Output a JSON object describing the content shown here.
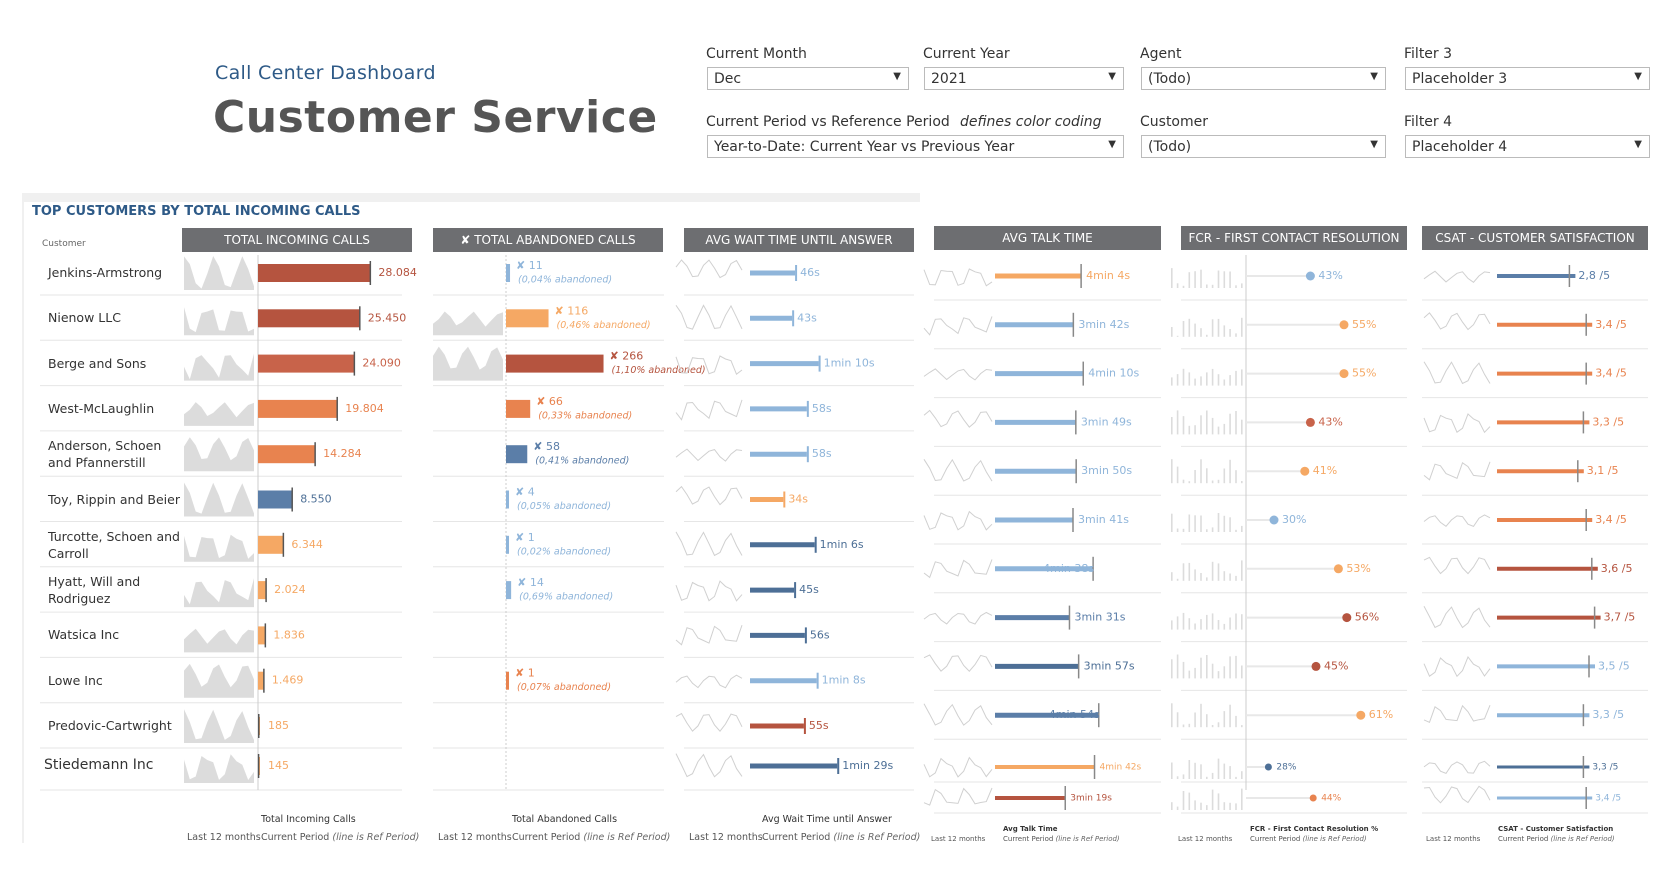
{
  "header": {
    "subtitle": "Call Center Dashboard",
    "title": "Customer Service"
  },
  "filters": {
    "current_month": {
      "label": "Current Month",
      "value": "Dec"
    },
    "current_year": {
      "label": "Current Year",
      "value": "2021"
    },
    "agent": {
      "label": "Agent",
      "value": "(Todo)"
    },
    "filter3": {
      "label": "Filter 3",
      "value": "Placeholder 3"
    },
    "period": {
      "label": "Current Period vs Reference Period",
      "note": "defines color coding",
      "value": "Year-to-Date: Current Year vs Previous Year"
    },
    "customer": {
      "label": "Customer",
      "value": "(Todo)"
    },
    "filter4": {
      "label": "Filter 4",
      "value": "Placeholder 4"
    }
  },
  "section_title": "TOP CUSTOMERS BY TOTAL INCOMING CALLS",
  "customer_header": "Customer",
  "columns": {
    "incoming": "TOTAL INCOMING CALLS",
    "abandoned": "✘ TOTAL ABANDONED CALLS",
    "wait": "AVG WAIT TIME UNTIL ANSWER",
    "talk": "AVG TALK TIME",
    "fcr": "FCR - FIRST CONTACT RESOLUTION %",
    "csat": "CSAT - CUSTOMER SATISFACTION"
  },
  "footers": {
    "last12": "Last 12 months",
    "current_period": "Current Period",
    "ref_note": "(line is Ref Period)",
    "incoming": "Total Incoming Calls",
    "abandoned": "Total Abandoned Calls",
    "wait": "Avg Wait Time until Answer",
    "talk": "Avg Talk Time",
    "fcr": "FCR - First Contact Resolution %",
    "csat": "CSAT - Customer Satisfaction"
  },
  "colors": {
    "dark_red": "#b5543f",
    "red": "#c8634a",
    "orange": "#e8834f",
    "light_orange": "#f5a864",
    "blue": "#5b7ea8",
    "dark_blue": "#4d6f96",
    "light_blue": "#8fb5da",
    "grey_bar": "#6d6e71",
    "spark": "#d4d4d4"
  },
  "chart_data": {
    "type": "table",
    "customers": [
      "Jenkins-Armstrong",
      "Nienow LLC",
      "Berge and Sons",
      "West-McLaughlin",
      "Anderson, Schoen and Pfannerstill",
      "Toy, Rippin and Beier",
      "Turcotte, Schoen and Carroll",
      "Hyatt, Will and Rodriguez",
      "Watsica Inc",
      "Lowe Inc",
      "Predovic-Cartwright",
      "Stiedemann Inc"
    ],
    "incoming": {
      "values": [
        28084,
        25450,
        24090,
        19804,
        14284,
        8550,
        6344,
        2024,
        1836,
        1469,
        185,
        145
      ],
      "labels": [
        "28.084",
        "25.450",
        "24.090",
        "19.804",
        "14.284",
        "8.550",
        "6.344",
        "2.024",
        "1.836",
        "1.469",
        "185",
        "145"
      ],
      "ref": [
        28084,
        25450,
        24090,
        19804,
        14284,
        8550,
        6344,
        2024,
        1836,
        1469,
        185,
        145
      ],
      "colors": [
        "dark_red",
        "dark_red",
        "red",
        "orange",
        "orange",
        "blue",
        "light_orange",
        "light_orange",
        "light_orange",
        "light_orange",
        "light_orange",
        "light_orange"
      ]
    },
    "abandoned": {
      "values": [
        11,
        116,
        266,
        66,
        58,
        4,
        1,
        14,
        0,
        1,
        0,
        0
      ],
      "labels": [
        "✘ 11",
        "✘ 116",
        "✘ 266",
        "✘ 66",
        "✘ 58",
        "✘ 4",
        "✘ 1",
        "✘ 14",
        "",
        "✘ 1",
        "",
        ""
      ],
      "pct": [
        "(0,04% abandoned)",
        "(0,46% abandoned)",
        "(1,10% abandoned)",
        "(0,33% abandoned)",
        "(0,41% abandoned)",
        "(0,05% abandoned)",
        "(0,02% abandoned)",
        "(0,69% abandoned)",
        "",
        "(0,07% abandoned)",
        "",
        ""
      ],
      "colors": [
        "light_blue",
        "light_orange",
        "dark_red",
        "orange",
        "blue",
        "light_blue",
        "light_blue",
        "light_blue",
        "",
        "orange",
        "",
        ""
      ]
    },
    "wait": {
      "values": [
        46,
        43,
        70,
        58,
        58,
        34,
        66,
        45,
        56,
        68,
        55,
        89
      ],
      "labels": [
        "46s",
        "43s",
        "1min 10s",
        "58s",
        "58s",
        "34s",
        "1min 6s",
        "45s",
        "56s",
        "1min 8s",
        "55s",
        "1min 29s"
      ],
      "colors": [
        "light_blue",
        "light_blue",
        "light_blue",
        "light_blue",
        "light_blue",
        "light_orange",
        "dark_blue",
        "dark_blue",
        "dark_blue",
        "light_blue",
        "dark_red",
        "dark_blue"
      ]
    },
    "talk": {
      "values": [
        244,
        222,
        250,
        229,
        230,
        221,
        278,
        211,
        237,
        294,
        282,
        199
      ],
      "labels": [
        "4min 4s",
        "3min 42s",
        "4min 10s",
        "3min 49s",
        "3min 50s",
        "3min 41s",
        "4min 38s",
        "3min 31s",
        "3min 57s",
        "4min 54s",
        "4min 42s",
        "3min 19s"
      ],
      "colors": [
        "light_orange",
        "light_blue",
        "light_blue",
        "light_blue",
        "light_blue",
        "light_blue",
        "light_blue",
        "blue",
        "dark_blue",
        "blue",
        "light_orange",
        "dark_red"
      ]
    },
    "fcr": {
      "values": [
        43,
        55,
        55,
        43,
        41,
        30,
        53,
        56,
        45,
        61,
        28,
        44
      ],
      "labels": [
        "43%",
        "55%",
        "55%",
        "43%",
        "41%",
        "30%",
        "53%",
        "56%",
        "45%",
        "61%",
        "28%",
        "44%"
      ],
      "colors": [
        "light_blue",
        "light_orange",
        "light_orange",
        "red",
        "light_orange",
        "light_blue",
        "light_orange",
        "dark_red",
        "dark_red",
        "light_orange",
        "dark_blue",
        "orange"
      ]
    },
    "csat": {
      "values": [
        2.8,
        3.4,
        3.4,
        3.3,
        3.1,
        3.4,
        3.6,
        3.7,
        3.5,
        3.3,
        3.3,
        3.4
      ],
      "labels": [
        "2,8 /5",
        "3,4 /5",
        "3,4 /5",
        "3,3 /5",
        "3,1 /5",
        "3,4 /5",
        "3,6 /5",
        "3,7 /5",
        "3,5 /5",
        "3,3 /5",
        "3,3 /5",
        "3,4 /5"
      ],
      "colors": [
        "blue",
        "orange",
        "orange",
        "orange",
        "orange",
        "orange",
        "dark_red",
        "dark_red",
        "light_blue",
        "light_blue",
        "dark_blue",
        "light_blue"
      ]
    }
  }
}
